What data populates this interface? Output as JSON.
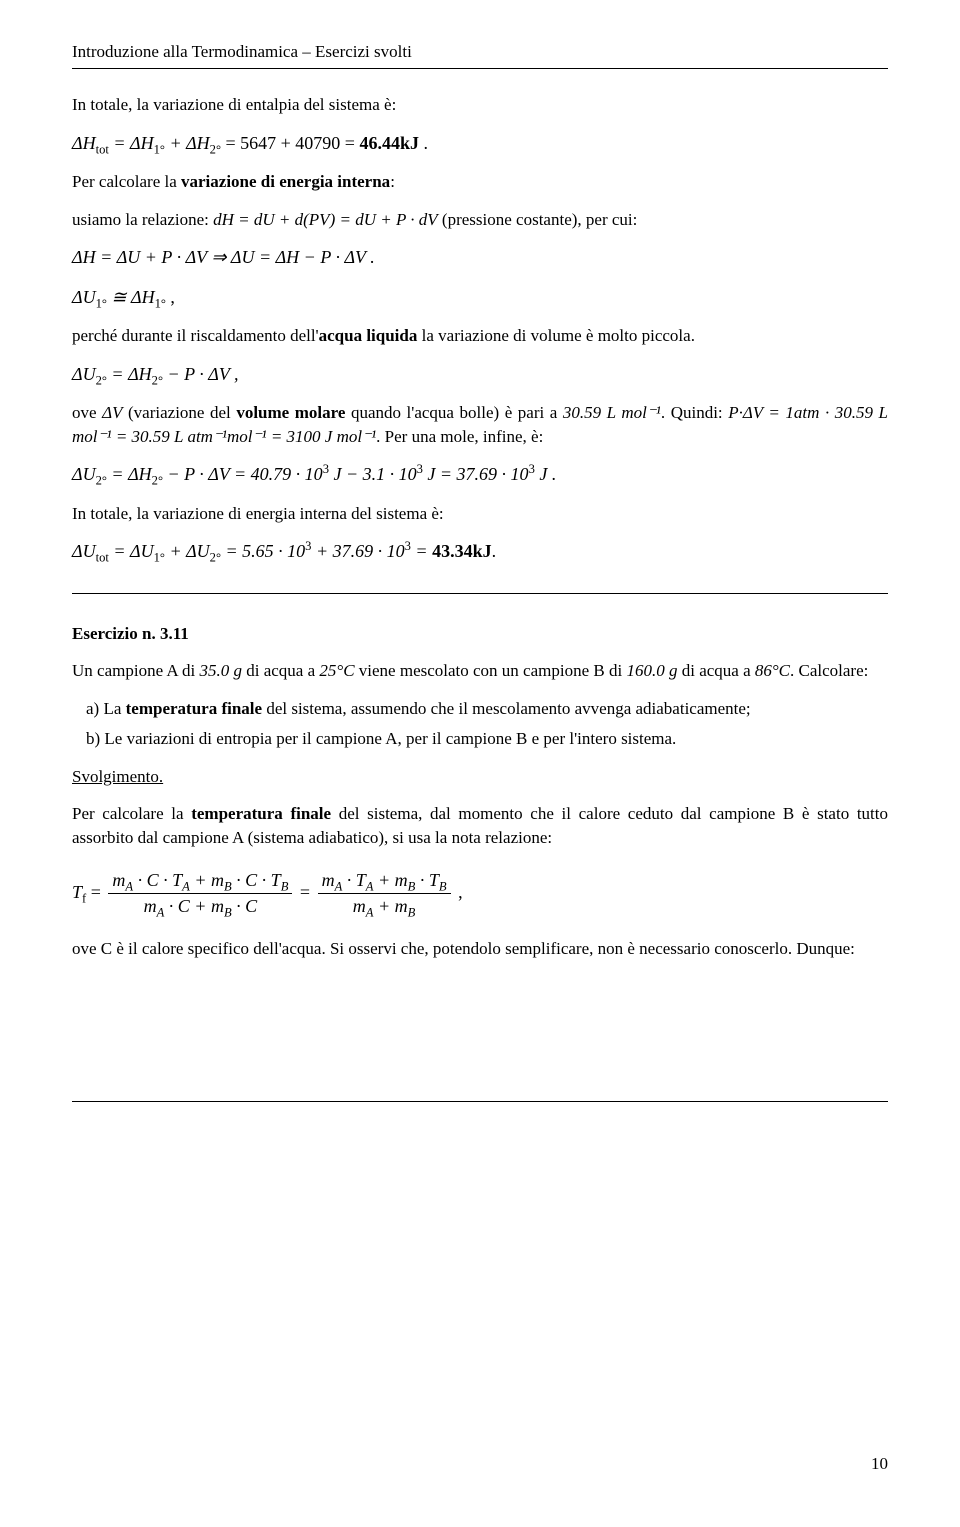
{
  "header": {
    "running_head": "Introduzione alla Termodinamica – Esercizi svolti"
  },
  "body": {
    "p1": "In totale, la variazione di entalpia del sistema è:",
    "eq1_lhs": "ΔH",
    "eq1_sub": "tot",
    "eq1_mid": " = ΔH",
    "eq1_s1": "1°",
    "eq1_plus": " + ΔH",
    "eq1_s2": "2°",
    "eq1_nums": " = 5647 + 40790 = ",
    "eq1_res": "46.44kJ",
    "eq1_dot": " .",
    "p2a": "Per calcolare la ",
    "p2b": "variazione di energia interna",
    "p2c": ":",
    "p3a": "usiamo la relazione:    ",
    "eq2": "dH = dU + d(PV) = dU + P · dV",
    "p3b": "  (pressione costante), per cui:",
    "eq3": "ΔH = ΔU + P · ΔV     ⇒     ΔU = ΔH − P · ΔV .",
    "eq4a": "ΔU",
    "eq4s1": "1°",
    "eq4b": " ≅ ΔH",
    "eq4s2": "1°",
    "eq4c": " ,",
    "p4a": "perché durante il riscaldamento dell'",
    "p4b": "acqua liquida",
    "p4c": " la variazione di volume è molto piccola.",
    "eq5a": "ΔU",
    "eq5s1": "2°",
    "eq5b": " = ΔH",
    "eq5s2": "2°",
    "eq5c": " − P · ΔV ,",
    "p5a": "ove ",
    "p5dv": "ΔV",
    "p5b": " (variazione del ",
    "p5c": "volume molare",
    "p5d": " quando l'acqua bolle) è pari a ",
    "p5e": "30.59 L mol⁻¹",
    "p5f": ". Quindi: ",
    "p5g": "P·ΔV = 1atm · 30.59 L mol⁻¹ = 30.59 L atm⁻¹mol⁻¹ = 3100 J mol⁻¹",
    "p5h": ". Per una mole, infine, è:",
    "eq6a": "ΔU",
    "eq6s1": "2°",
    "eq6b": " = ΔH",
    "eq6s2": "2°",
    "eq6c": " − P · ΔV = 40.79 · 10",
    "eq6e1": "3",
    "eq6d": " J − 3.1 · 10",
    "eq6e2": "3",
    "eq6e": " J = 37.69 · 10",
    "eq6e3": "3",
    "eq6f": " J .",
    "p6": "In totale, la variazione di energia interna del sistema è:",
    "eq7a": "ΔU",
    "eq7s0": "tot",
    "eq7b": " = ΔU",
    "eq7s1": "1°",
    "eq7c": " + ΔU",
    "eq7s2": "2°",
    "eq7d": " = 5.65 · 10",
    "eq7e1": "3",
    "eq7e": " + 37.69 · 10",
    "eq7e2": "3",
    "eq7f": " = ",
    "eq7res": "43.34kJ",
    "eq7g": ".",
    "ex_head": "Esercizio n. 3.11",
    "ex_p1a": "Un campione A di ",
    "ex_p1b": "35.0 g",
    "ex_p1c": " di acqua a ",
    "ex_p1d": "25°C",
    "ex_p1e": " viene mescolato con un campione B di ",
    "ex_p1f": "160.0 g",
    "ex_p1g": " di acqua a ",
    "ex_p1h": "86°C",
    "ex_p1i": ". Calcolare:",
    "li_a_a": "a)  La ",
    "li_a_b": "temperatura finale",
    "li_a_c": " del sistema, assumendo che il mescolamento avvenga adiabaticamente;",
    "li_b": "b)  Le variazioni di entropia per il campione A, per il campione B e per l'intero sistema.",
    "svolg": "Svolgimento.",
    "p7a": "Per calcolare la ",
    "p7b": "temperatura finale",
    "p7c": " del sistema, dal momento che il calore ceduto dal campione B è stato tutto assorbito dal campione A (sistema adiabatico), si usa la nota relazione:",
    "frac_lhs": "T",
    "frac_lhs_sub": "f",
    "frac_eq": " = ",
    "frac1_num": "m<sub>A</sub> · C · T<sub>A</sub> + m<sub>B</sub> · C · T<sub>B</sub>",
    "frac1_den": "m<sub>A</sub> · C + m<sub>B</sub> · C",
    "frac_mid": " = ",
    "frac2_num": "m<sub>A</sub> · T<sub>A</sub> + m<sub>B</sub> · T<sub>B</sub>",
    "frac2_den": "m<sub>A</sub> + m<sub>B</sub>",
    "frac_end": " ,",
    "p8": "ove C è il calore specifico dell'acqua. Si osservi che, potendolo semplificare, non è necessario conoscerlo. Dunque:"
  },
  "footer": {
    "page": "10"
  }
}
